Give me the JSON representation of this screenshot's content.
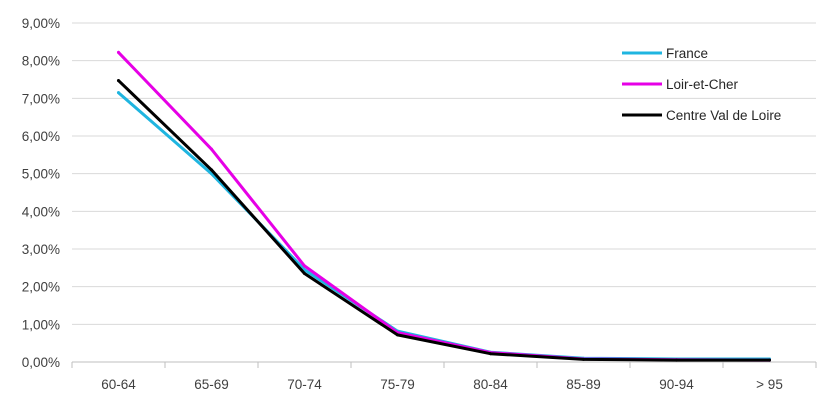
{
  "chart_data": {
    "type": "line",
    "title": "",
    "xlabel": "",
    "ylabel": "",
    "categories": [
      "60-64",
      "65-69",
      "70-74",
      "75-79",
      "80-84",
      "85-89",
      "90-94",
      "> 95"
    ],
    "ylim": [
      0,
      9
    ],
    "y_ticks": [
      0,
      1,
      2,
      3,
      4,
      5,
      6,
      7,
      8,
      9
    ],
    "y_tick_labels": [
      "0,00%",
      "1,00%",
      "2,00%",
      "3,00%",
      "4,00%",
      "5,00%",
      "6,00%",
      "7,00%",
      "8,00%",
      "9,00%"
    ],
    "grid": true,
    "legend_position": "top-right",
    "series": [
      {
        "name": "France",
        "color": "#1fb5e0",
        "values": [
          7.15,
          5.0,
          2.45,
          0.82,
          0.26,
          0.1,
          0.08,
          0.08
        ]
      },
      {
        "name": "Loir-et-Cher",
        "color": "#e600e6",
        "values": [
          8.22,
          5.65,
          2.55,
          0.78,
          0.25,
          0.08,
          0.06,
          0.05
        ]
      },
      {
        "name": "Centre Val de Loire",
        "color": "#000000",
        "values": [
          7.47,
          5.1,
          2.35,
          0.72,
          0.22,
          0.07,
          0.05,
          0.05
        ]
      }
    ]
  }
}
